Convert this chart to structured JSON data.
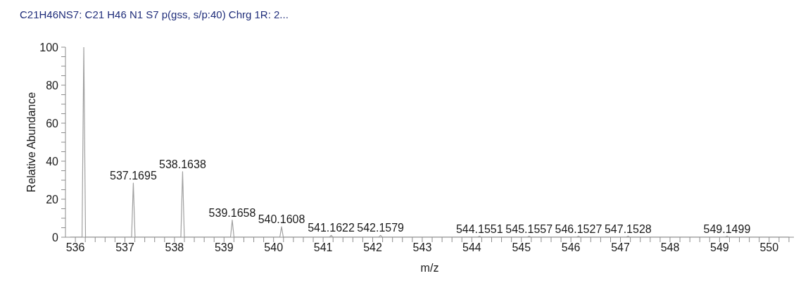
{
  "chart_data": {
    "type": "line",
    "title": "C21H46NS7: C21 H46 N1 S7 p(gss, s/p:40) Chrg 1R: 2...",
    "xlabel": "m/z",
    "ylabel": "Relative Abundance",
    "x": [
      535.9,
      536.135,
      536.17,
      536.205,
      537.1345,
      537.1695,
      537.2045,
      538.1288,
      538.1638,
      538.1988,
      539.1308,
      539.1658,
      539.2008,
      540.1258,
      540.1608,
      540.1958,
      541.1272,
      541.1622,
      541.1972,
      542.1229,
      542.1579,
      542.1929,
      544.1201,
      544.1551,
      544.1901,
      545.1207,
      545.1557,
      545.1907,
      546.1177,
      546.1527,
      546.1877,
      547.1178,
      547.1528,
      547.1878,
      549.1149,
      549.1499,
      549.1849,
      550.4
    ],
    "series": [
      {
        "color": "#a0a0a0",
        "values": [
          0,
          0,
          100,
          0,
          0,
          28.5,
          0,
          0,
          34.5,
          0,
          0,
          9,
          0,
          0,
          5.5,
          0,
          0,
          1,
          0,
          0,
          1,
          0,
          0,
          0.5,
          0,
          0,
          0.5,
          0,
          0,
          0.5,
          0,
          0,
          0.5,
          0,
          0,
          0.5,
          0,
          0
        ]
      }
    ],
    "xlim": [
      535.8,
      550.5
    ],
    "xticks": [
      536,
      {
        "value": 536.2,
        "label": null
      },
      {
        "value": 536.4,
        "label": null
      },
      {
        "value": 536.6,
        "label": null
      },
      {
        "value": 536.8,
        "label": null
      },
      537,
      {
        "value": 537.2,
        "label": null
      },
      {
        "value": 537.4,
        "label": null
      },
      {
        "value": 537.6,
        "label": null
      },
      {
        "value": 537.8,
        "label": null
      },
      538,
      {
        "value": 538.2,
        "label": null
      },
      {
        "value": 538.4,
        "label": null
      },
      {
        "value": 538.6,
        "label": null
      },
      {
        "value": 538.8,
        "label": null
      },
      539,
      {
        "value": 539.2,
        "label": null
      },
      {
        "value": 539.4,
        "label": null
      },
      {
        "value": 539.6,
        "label": null
      },
      {
        "value": 539.8,
        "label": null
      },
      540,
      {
        "value": 540.2,
        "label": null
      },
      {
        "value": 540.4,
        "label": null
      },
      {
        "value": 540.6,
        "label": null
      },
      {
        "value": 540.8,
        "label": null
      },
      541,
      {
        "value": 541.2,
        "label": null
      },
      {
        "value": 541.4,
        "label": null
      },
      {
        "value": 541.6,
        "label": null
      },
      {
        "value": 541.8,
        "label": null
      },
      542,
      {
        "value": 542.2,
        "label": null
      },
      {
        "value": 542.4,
        "label": null
      },
      {
        "value": 542.6,
        "label": null
      },
      {
        "value": 542.8,
        "label": null
      },
      543,
      {
        "value": 543.2,
        "label": null
      },
      {
        "value": 543.4,
        "label": null
      },
      {
        "value": 543.6,
        "label": null
      },
      {
        "value": 543.8,
        "label": null
      },
      544,
      {
        "value": 544.2,
        "label": null
      },
      {
        "value": 544.4,
        "label": null
      },
      {
        "value": 544.6,
        "label": null
      },
      {
        "value": 544.8,
        "label": null
      },
      545,
      {
        "value": 545.2,
        "label": null
      },
      {
        "value": 545.4,
        "label": null
      },
      {
        "value": 545.6,
        "label": null
      },
      {
        "value": 545.8,
        "label": null
      },
      546,
      {
        "value": 546.2,
        "label": null
      },
      {
        "value": 546.4,
        "label": null
      },
      {
        "value": 546.6,
        "label": null
      },
      {
        "value": 546.8,
        "label": null
      },
      547,
      {
        "value": 547.2,
        "label": null
      },
      {
        "value": 547.4,
        "label": null
      },
      {
        "value": 547.6,
        "label": null
      },
      {
        "value": 547.8,
        "label": null
      },
      548,
      {
        "value": 548.2,
        "label": null
      },
      {
        "value": 548.4,
        "label": null
      },
      {
        "value": 548.6,
        "label": null
      },
      {
        "value": 548.8,
        "label": null
      },
      549,
      {
        "value": 549.2,
        "label": null
      },
      {
        "value": 549.4,
        "label": null
      },
      {
        "value": 549.6,
        "label": null
      },
      {
        "value": 549.8,
        "label": null
      },
      550,
      {
        "value": 550.2,
        "label": null
      },
      {
        "value": 550.4,
        "label": null
      }
    ],
    "ylim": [
      0,
      100
    ],
    "yticks": [
      0,
      {
        "value": 5,
        "label": null
      },
      {
        "value": 10,
        "label": null
      },
      {
        "value": 15,
        "label": null
      },
      20,
      {
        "value": 25,
        "label": null
      },
      {
        "value": 30,
        "label": null
      },
      {
        "value": 35,
        "label": null
      },
      40,
      {
        "value": 45,
        "label": null
      },
      {
        "value": 50,
        "label": null
      },
      {
        "value": 55,
        "label": null
      },
      60,
      {
        "value": 65,
        "label": null
      },
      {
        "value": 70,
        "label": null
      },
      {
        "value": 75,
        "label": null
      },
      80,
      {
        "value": 85,
        "label": null
      },
      {
        "value": 90,
        "label": null
      },
      {
        "value": 95,
        "label": null
      },
      100
    ],
    "annotations": [
      {
        "text": "537.1695",
        "x": 537.1695,
        "y": 28.5
      },
      {
        "text": "538.1638",
        "x": 538.1638,
        "y": 34.5
      },
      {
        "text": "539.1658",
        "x": 539.1658,
        "y": 9
      },
      {
        "text": "540.1608",
        "x": 540.1608,
        "y": 5.5
      },
      {
        "text": "541.1622",
        "x": 541.1622,
        "y": 1
      },
      {
        "text": "542.1579",
        "x": 542.1579,
        "y": 1
      },
      {
        "text": "544.1551",
        "x": 544.1551,
        "y": 0.5
      },
      {
        "text": "545.1557",
        "x": 545.1557,
        "y": 0.5
      },
      {
        "text": "546.1527",
        "x": 546.1527,
        "y": 0.5
      },
      {
        "text": "547.1528",
        "x": 547.1528,
        "y": 0.5
      },
      {
        "text": "549.1499",
        "x": 549.1499,
        "y": 0.5
      }
    ]
  }
}
